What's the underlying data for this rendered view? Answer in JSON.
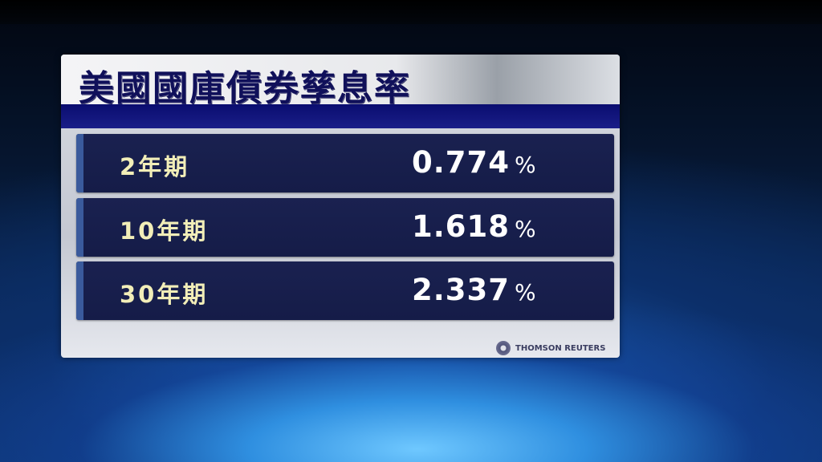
{
  "title": "美國國庫債券孳息率",
  "rows": [
    {
      "label": "2年期",
      "value": "0.774",
      "unit": "%"
    },
    {
      "label": "10年期",
      "value": "1.618",
      "unit": "%"
    },
    {
      "label": "30年期",
      "value": "2.337",
      "unit": "%"
    }
  ],
  "source": "THOMSON REUTERS",
  "colors": {
    "title": "#10105a",
    "band": "#0a0d70",
    "row_bg": "#1a2150",
    "label": "#f2eeb8",
    "value": "#ffffff"
  }
}
